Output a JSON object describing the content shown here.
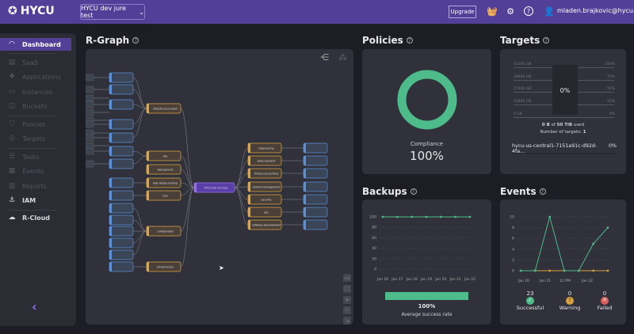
{
  "header": {
    "logo": "HYCU",
    "tenant": "HYCU dev jure test",
    "upgrade": "Upgrade",
    "user": "mladen.brajkovic@hycu.com"
  },
  "sidebar": {
    "items": [
      {
        "label": "Dashboard",
        "icon": "dashboard-icon"
      },
      {
        "label": "SaaS",
        "icon": "saas-icon"
      },
      {
        "label": "Applications",
        "icon": "applications-icon"
      },
      {
        "label": "Instances",
        "icon": "instances-icon"
      },
      {
        "label": "Buckets",
        "icon": "buckets-icon"
      },
      {
        "label": "Policies",
        "icon": "policies-icon"
      },
      {
        "label": "Targets",
        "icon": "targets-icon"
      },
      {
        "label": "Tasks",
        "icon": "tasks-icon"
      },
      {
        "label": "Events",
        "icon": "events-icon"
      },
      {
        "label": "Reports",
        "icon": "reports-icon"
      },
      {
        "label": "IAM",
        "icon": "iam-icon"
      },
      {
        "label": "R-Cloud",
        "icon": "rcloud-icon"
      }
    ]
  },
  "rgraph": {
    "title": "R-Graph",
    "center": "HYCU dev jure test",
    "left_groups": [
      "infrastructure-team",
      "dev",
      "web-general",
      "web-design-hosting",
      "hub",
      "collaboration",
      "infrastructure"
    ],
    "right_groups": [
      "engineering",
      "sales-research",
      "finance-accounting",
      "product-management",
      "security",
      "ops",
      "software-development"
    ]
  },
  "policies": {
    "title": "Policies",
    "label": "Compliance",
    "value": "100%",
    "compliance": 100,
    "color": "#4dbb8a"
  },
  "targets": {
    "title": "Targets",
    "gb_ticks": [
      "51200 GB",
      "38400 GB",
      "25600 GB",
      "12800 GB",
      "0 GB"
    ],
    "pct_ticks": [
      "100%",
      "75%",
      "50%",
      "25%",
      "0%"
    ],
    "bar_value": "0%",
    "used_prefix": "0 B",
    "used_of": "of",
    "used_total": "50 TiB",
    "used_suffix": "used",
    "count_label": "Number of targets:",
    "count": "1",
    "target_name": "hycu-us-central1-7151a91c-d92d-4fa...",
    "target_pct": "0%"
  },
  "backups": {
    "title": "Backups",
    "rate": "100%",
    "rate_label": "Average success rate",
    "rate_fraction": 1.0
  },
  "events": {
    "title": "Events",
    "successful": "23",
    "successful_label": "Successful",
    "warning": "0",
    "warning_label": "Warning",
    "failed": "0",
    "failed_label": "Failed"
  },
  "chart_data": [
    {
      "type": "line",
      "title": "Backups",
      "categories": [
        "Jan 16",
        "Jan 17",
        "Jan 18",
        "Jan 19",
        "Jan 20",
        "Jan 21",
        "Jan 22"
      ],
      "yticks": [
        "100",
        "80",
        "60",
        "40",
        "20",
        "0"
      ],
      "ylim": [
        0,
        100
      ],
      "series": [
        {
          "name": "success",
          "color": "#4dbb8a",
          "values": [
            100,
            100,
            100,
            100,
            100,
            100,
            100
          ]
        }
      ]
    },
    {
      "type": "line",
      "title": "Events",
      "xticks": [
        "Jan 20",
        "Jan 21",
        "12 PM",
        "Jan 22"
      ],
      "yticks": [
        "10",
        "8",
        "6",
        "4",
        "2",
        "0"
      ],
      "ylim": [
        0,
        10
      ],
      "series": [
        {
          "name": "successful",
          "color": "#4dbb8a",
          "values": [
            0,
            0,
            10,
            0,
            0,
            5,
            8
          ]
        },
        {
          "name": "warning",
          "color": "#d9a040",
          "values": [
            null,
            0,
            0,
            0,
            0,
            0,
            0
          ]
        }
      ]
    }
  ]
}
